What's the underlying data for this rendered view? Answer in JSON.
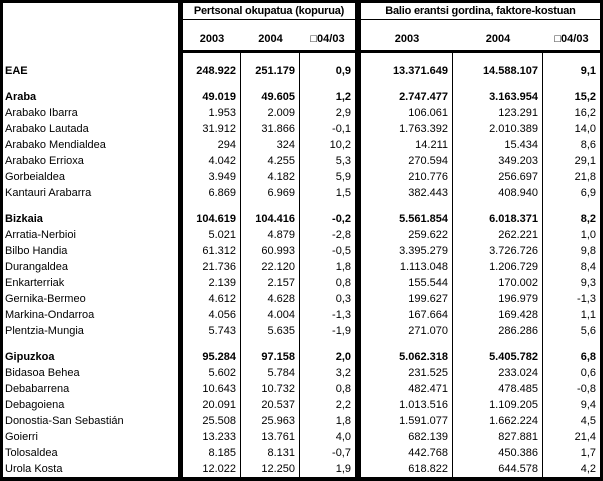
{
  "colors": {
    "border": "#000000",
    "background": "#ffffff",
    "text": "#000000"
  },
  "table": {
    "group1_header": "Pertsonal okupatua (kopurua)",
    "group2_header": "Balio erantsi gordina, faktore-kostuan",
    "col_headers": [
      "2003",
      "2004",
      "□04/03"
    ],
    "rows": [
      {
        "name": "EAE",
        "level": "total",
        "values": [
          "248.922",
          "251.179",
          "0,9",
          "13.371.649",
          "14.588.107",
          "9,1"
        ]
      },
      {
        "name": "Araba",
        "level": "province",
        "values": [
          "49.019",
          "49.605",
          "1,2",
          "2.747.477",
          "3.163.954",
          "15,2"
        ]
      },
      {
        "name": "Arabako Ibarra",
        "level": "comarca",
        "values": [
          "1.953",
          "2.009",
          "2,9",
          "106.061",
          "123.291",
          "16,2"
        ]
      },
      {
        "name": "Arabako Lautada",
        "level": "comarca",
        "values": [
          "31.912",
          "31.866",
          "-0,1",
          "1.763.392",
          "2.010.389",
          "14,0"
        ]
      },
      {
        "name": "Arabako Mendialdea",
        "level": "comarca",
        "values": [
          "294",
          "324",
          "10,2",
          "14.211",
          "15.434",
          "8,6"
        ]
      },
      {
        "name": "Arabako Errioxa",
        "level": "comarca",
        "values": [
          "4.042",
          "4.255",
          "5,3",
          "270.594",
          "349.203",
          "29,1"
        ]
      },
      {
        "name": "Gorbeialdea",
        "level": "comarca",
        "values": [
          "3.949",
          "4.182",
          "5,9",
          "210.776",
          "256.697",
          "21,8"
        ]
      },
      {
        "name": "Kantauri Arabarra",
        "level": "comarca",
        "values": [
          "6.869",
          "6.969",
          "1,5",
          "382.443",
          "408.940",
          "6,9"
        ]
      },
      {
        "name": "Bizkaia",
        "level": "province",
        "values": [
          "104.619",
          "104.416",
          "-0,2",
          "5.561.854",
          "6.018.371",
          "8,2"
        ]
      },
      {
        "name": "Arratia-Nerbioi",
        "level": "comarca",
        "values": [
          "5.021",
          "4.879",
          "-2,8",
          "259.622",
          "262.221",
          "1,0"
        ]
      },
      {
        "name": "Bilbo Handia",
        "level": "comarca",
        "values": [
          "61.312",
          "60.993",
          "-0,5",
          "3.395.279",
          "3.726.726",
          "9,8"
        ]
      },
      {
        "name": "Durangaldea",
        "level": "comarca",
        "values": [
          "21.736",
          "22.120",
          "1,8",
          "1.113.048",
          "1.206.729",
          "8,4"
        ]
      },
      {
        "name": "Enkarterriak",
        "level": "comarca",
        "values": [
          "2.139",
          "2.157",
          "0,8",
          "155.544",
          "170.002",
          "9,3"
        ]
      },
      {
        "name": "Gernika-Bermeo",
        "level": "comarca",
        "values": [
          "4.612",
          "4.628",
          "0,3",
          "199.627",
          "196.979",
          "-1,3"
        ]
      },
      {
        "name": "Markina-Ondarroa",
        "level": "comarca",
        "values": [
          "4.056",
          "4.004",
          "-1,3",
          "167.664",
          "169.428",
          "1,1"
        ]
      },
      {
        "name": "Plentzia-Mungia",
        "level": "comarca",
        "values": [
          "5.743",
          "5.635",
          "-1,9",
          "271.070",
          "286.286",
          "5,6"
        ]
      },
      {
        "name": "Gipuzkoa",
        "level": "province",
        "values": [
          "95.284",
          "97.158",
          "2,0",
          "5.062.318",
          "5.405.782",
          "6,8"
        ]
      },
      {
        "name": "Bidasoa Behea",
        "level": "comarca",
        "values": [
          "5.602",
          "5.784",
          "3,2",
          "231.525",
          "233.024",
          "0,6"
        ]
      },
      {
        "name": "Debabarrena",
        "level": "comarca",
        "values": [
          "10.643",
          "10.732",
          "0,8",
          "482.471",
          "478.485",
          "-0,8"
        ]
      },
      {
        "name": "Debagoiena",
        "level": "comarca",
        "values": [
          "20.091",
          "20.537",
          "2,2",
          "1.013.516",
          "1.109.205",
          "9,4"
        ]
      },
      {
        "name": "Donostia-San Sebastián",
        "level": "comarca",
        "values": [
          "25.508",
          "25.963",
          "1,8",
          "1.591.077",
          "1.662.224",
          "4,5"
        ]
      },
      {
        "name": "Goierri",
        "level": "comarca",
        "values": [
          "13.233",
          "13.761",
          "4,0",
          "682.139",
          "827.881",
          "21,4"
        ]
      },
      {
        "name": "Tolosaldea",
        "level": "comarca",
        "values": [
          "8.185",
          "8.131",
          "-0,7",
          "442.768",
          "450.386",
          "1,7"
        ]
      },
      {
        "name": "Urola Kosta",
        "level": "comarca",
        "values": [
          "12.022",
          "12.250",
          "1,9",
          "618.822",
          "644.578",
          "4,2"
        ]
      }
    ]
  }
}
